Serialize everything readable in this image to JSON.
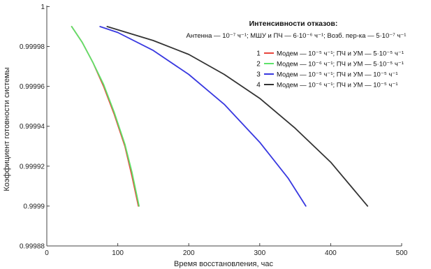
{
  "chart_data": {
    "type": "line",
    "xlabel": "Время восстановления, час",
    "ylabel": "Коэффициент готовности системы",
    "xlim": [
      0,
      500
    ],
    "ylim": [
      0.99988,
      1.0000005
    ],
    "xticks": [
      0,
      100,
      200,
      300,
      400,
      500
    ],
    "xtick_labels": [
      "0",
      "100",
      "200",
      "300",
      "400",
      "500"
    ],
    "yticks": [
      0.99988,
      0.9999,
      0.99992,
      0.99994,
      0.99996,
      0.99998,
      1
    ],
    "ytick_labels": [
      "0.99988",
      "0.9999",
      "0.99992",
      "0.99994",
      "0.99996",
      "0.99998",
      "1"
    ],
    "grid": false,
    "annotation": {
      "title": "Интенсивности отказов:",
      "line": "Антенна — 10⁻⁷ ч⁻¹; МШУ и ПЧ — 6·10⁻⁶ ч⁻¹; Возб. пер-ка — 5·10⁻⁷ ч⁻¹"
    },
    "legend_position": "right",
    "series": [
      {
        "name": "Модем — 10⁻⁵ ч⁻¹; ПЧ и УМ — 5·10⁻⁵ ч⁻¹",
        "number": "1",
        "color": "#e8453c",
        "x": [
          35,
          50,
          65,
          80,
          95,
          110,
          120,
          129
        ],
        "y": [
          0.99999,
          0.999982,
          0.999972,
          0.99996,
          0.999946,
          0.99993,
          0.999915,
          0.9999
        ]
      },
      {
        "name": "Модем — 10⁻⁶ ч⁻¹; ПЧ и УМ — 5·10⁻⁵ ч⁻¹",
        "number": "2",
        "color": "#5ee36a",
        "x": [
          35,
          50,
          65,
          80,
          95,
          110,
          120,
          130
        ],
        "y": [
          0.99999,
          0.999982,
          0.999972,
          0.999961,
          0.999947,
          0.999931,
          0.999917,
          0.9999
        ]
      },
      {
        "name": "Модем — 10⁻⁵ ч⁻¹; ПЧ и УМ — 10⁻⁵ ч⁻¹",
        "number": "3",
        "color": "#3838e0",
        "x": [
          75,
          100,
          150,
          200,
          250,
          300,
          340,
          365
        ],
        "y": [
          0.99999,
          0.999987,
          0.999978,
          0.999966,
          0.999951,
          0.999932,
          0.999914,
          0.9999
        ]
      },
      {
        "name": "Модем — 10⁻⁶ ч⁻¹; ПЧ и УМ — 10⁻⁵ ч⁻¹",
        "number": "4",
        "color": "#333333",
        "x": [
          85,
          150,
          200,
          250,
          300,
          350,
          400,
          452
        ],
        "y": [
          0.99999,
          0.999983,
          0.999976,
          0.999966,
          0.999954,
          0.999939,
          0.999922,
          0.9999
        ]
      }
    ]
  }
}
